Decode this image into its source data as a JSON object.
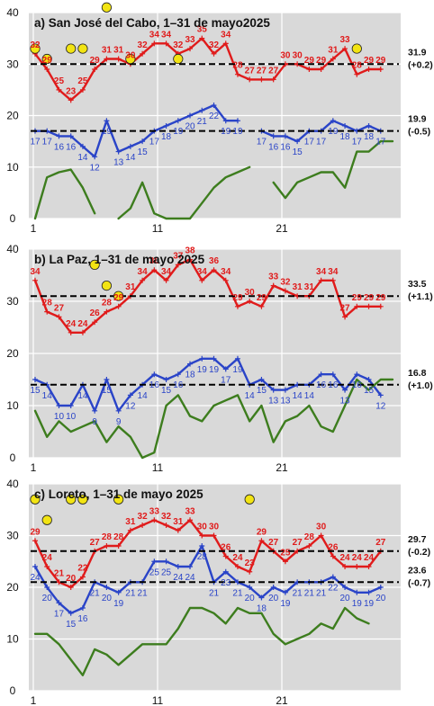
{
  "colors": {
    "tmax": "#e01b1b",
    "tmin": "#2a44c8",
    "precip": "#3d7d1e",
    "mean_line": "#000000",
    "marker": "#f2e413",
    "plot_bg": "#d9d9d9"
  },
  "chart_data": [
    {
      "type": "line",
      "title": "a) San José del Cabo, 1–31 de mayo2025",
      "x": [
        1,
        2,
        3,
        4,
        5,
        6,
        7,
        8,
        9,
        10,
        11,
        12,
        13,
        14,
        15,
        16,
        17,
        18,
        19,
        20,
        21,
        22,
        23,
        24,
        25,
        26,
        27,
        28,
        29,
        30,
        31
      ],
      "xticks": [
        "1",
        "11",
        "21"
      ],
      "ylim": [
        0,
        40
      ],
      "yticks": [
        0,
        10,
        20,
        30,
        40
      ],
      "series": [
        {
          "values": [
            32,
            29,
            25,
            23,
            25,
            29,
            31,
            31,
            30,
            32,
            34,
            34,
            32,
            33,
            35,
            32,
            34,
            28,
            27,
            27,
            27,
            30,
            30,
            29,
            29,
            31,
            33,
            28,
            29,
            29,
            null
          ]
        },
        {
          "values": [
            17,
            17,
            16,
            16,
            14,
            12,
            19,
            13,
            14,
            15,
            17,
            18,
            19,
            20,
            21,
            22,
            19,
            19,
            null,
            17,
            16,
            16,
            15,
            17,
            17,
            19,
            18,
            17,
            18,
            17,
            null
          ]
        },
        {
          "values": [
            0,
            8,
            9,
            9.5,
            6,
            1,
            null,
            0,
            2,
            7,
            1,
            0,
            0,
            0,
            3,
            6,
            8,
            9,
            10,
            null,
            7,
            4,
            7,
            8,
            9,
            9,
            6,
            13,
            13,
            15,
            15
          ]
        }
      ],
      "temp_labels": {
        "tmax": [
          "32",
          "29",
          "25",
          "23",
          "25",
          "29",
          "31",
          "31",
          "30",
          "32",
          "34",
          "34",
          "32",
          "33",
          "35",
          "32",
          "34",
          "28",
          "27",
          "27",
          "27",
          "30",
          "30",
          "29",
          "29",
          "31",
          "33",
          "28",
          "29",
          "29"
        ],
        "tmin": [
          "17",
          "17",
          "16",
          "16",
          "14",
          "12",
          "19",
          "13",
          "14",
          "15",
          "17",
          "18",
          "19",
          "20",
          "21",
          "22",
          "19",
          "19",
          "17",
          "16",
          "16",
          "15",
          "17",
          "17",
          "19",
          "18",
          "17",
          "18",
          "17"
        ]
      },
      "markers": [
        {
          "x": 1,
          "y": 33
        },
        {
          "x": 2,
          "y": 31
        },
        {
          "x": 4,
          "y": 33
        },
        {
          "x": 5,
          "y": 33
        },
        {
          "x": 7,
          "y": 41
        },
        {
          "x": 9,
          "y": 31
        },
        {
          "x": 13,
          "y": 31
        },
        {
          "x": 28,
          "y": 33
        }
      ],
      "means": [
        {
          "value": 31.9,
          "label": "31.9",
          "anomaly": "(+0.2)",
          "y": 30
        },
        {
          "value": 19.9,
          "label": "19.9",
          "anomaly": "(-0.5)",
          "y": 17
        }
      ]
    },
    {
      "type": "line",
      "title": "b) La Paz, 1–31 de mayo 2025",
      "x": [
        1,
        2,
        3,
        4,
        5,
        6,
        7,
        8,
        9,
        10,
        11,
        12,
        13,
        14,
        15,
        16,
        17,
        18,
        19,
        20,
        21,
        22,
        23,
        24,
        25,
        26,
        27,
        28,
        29,
        30,
        31
      ],
      "xticks": [
        "1",
        "11",
        "21"
      ],
      "ylim": [
        0,
        40
      ],
      "yticks": [
        0,
        10,
        20,
        30,
        40
      ],
      "series": [
        {
          "values": [
            34,
            28,
            27,
            24,
            24,
            26,
            28,
            29,
            31,
            34,
            36,
            34,
            37,
            38,
            34,
            36,
            34,
            29,
            30,
            29,
            33,
            32,
            31,
            31,
            34,
            34,
            27,
            29,
            29,
            29,
            null
          ]
        },
        {
          "values": [
            15,
            14,
            10,
            10,
            14,
            9,
            15,
            9,
            12,
            14,
            16,
            15,
            16,
            18,
            19,
            19,
            17,
            19,
            14,
            15,
            13,
            13,
            14,
            14,
            16,
            16,
            13,
            16,
            15,
            12,
            null
          ]
        },
        {
          "values": [
            9,
            4,
            7,
            5,
            6,
            7,
            3,
            6,
            4,
            0,
            1,
            10,
            12,
            8,
            7,
            10,
            11,
            12,
            7,
            10,
            3,
            7,
            8,
            10,
            6,
            5,
            10,
            15,
            13,
            15,
            15
          ]
        }
      ],
      "temp_labels": {
        "tmax": [
          "34",
          "28",
          "27",
          "24",
          "24",
          "26",
          "28",
          "29",
          "31",
          "34",
          "36",
          "34",
          "37",
          "38",
          "34",
          "36",
          "34",
          "29",
          "30",
          "29",
          "33",
          "32",
          "31",
          "31",
          "34",
          "34",
          "27",
          "29",
          "29",
          "29"
        ],
        "tmin": [
          "15",
          "14",
          "10",
          "10",
          "14",
          "9",
          "15",
          "9",
          "12",
          "14",
          "16",
          "15",
          "16",
          "18",
          "19",
          "19",
          "17",
          "19",
          "14",
          "15",
          "13",
          "13",
          "14",
          "14",
          "16",
          "16",
          "13",
          "16",
          "15",
          "12"
        ]
      },
      "markers": [
        {
          "x": 6,
          "y": 37
        },
        {
          "x": 7,
          "y": 33
        },
        {
          "x": 8,
          "y": 31
        }
      ],
      "means": [
        {
          "value": 33.5,
          "label": "33.5",
          "anomaly": "(+1.1)",
          "y": 31
        },
        {
          "value": 16.8,
          "label": "16.8",
          "anomaly": "(+1.0)",
          "y": 14
        }
      ]
    },
    {
      "type": "line",
      "title": "c) Loreto, 1–31 de mayo 2025",
      "x": [
        1,
        2,
        3,
        4,
        5,
        6,
        7,
        8,
        9,
        10,
        11,
        12,
        13,
        14,
        15,
        16,
        17,
        18,
        19,
        20,
        21,
        22,
        23,
        24,
        25,
        26,
        27,
        28,
        29,
        30,
        31
      ],
      "xticks": [
        "1",
        "11",
        "21"
      ],
      "ylim": [
        0,
        40
      ],
      "yticks": [
        0,
        10,
        20,
        30,
        40
      ],
      "series": [
        {
          "values": [
            29,
            24,
            21,
            20,
            22,
            27,
            28,
            28,
            31,
            32,
            33,
            32,
            31,
            33,
            30,
            30,
            26,
            24,
            23,
            29,
            27,
            25,
            27,
            28,
            30,
            26,
            24,
            24,
            24,
            27,
            null
          ]
        },
        {
          "values": [
            24,
            20,
            17,
            15,
            16,
            21,
            20,
            19,
            21,
            21,
            25,
            25,
            24,
            24,
            28,
            21,
            23,
            21,
            20,
            18,
            20,
            19,
            21,
            21,
            21,
            22,
            20,
            19,
            19,
            20,
            null
          ]
        },
        {
          "values": [
            11,
            11,
            9,
            6,
            3,
            8,
            7,
            5,
            7,
            9,
            9,
            9,
            12,
            16,
            16,
            15,
            13,
            16,
            15,
            15,
            11,
            9,
            10,
            11,
            13,
            12,
            16,
            14,
            13,
            null,
            null
          ]
        }
      ],
      "temp_labels": {
        "tmax": [
          "29",
          "24",
          "21",
          "20",
          "22",
          "27",
          "28",
          "28",
          "31",
          "32",
          "33",
          "32",
          "31",
          "33",
          "30",
          "30",
          "26",
          "24",
          "23",
          "29",
          "27",
          "25",
          "27",
          "28",
          "30",
          "26",
          "24",
          "24",
          "24",
          "27"
        ],
        "tmin": [
          "24",
          "20",
          "17",
          "15",
          "16",
          "21",
          "20",
          "19",
          "21",
          "21",
          "25",
          "25",
          "24",
          "24",
          "28",
          "21",
          "23",
          "21",
          "20",
          "18",
          "20",
          "19",
          "21",
          "21",
          "21",
          "22",
          "20",
          "19",
          "19",
          "20"
        ]
      },
      "markers": [
        {
          "x": 1,
          "y": 37
        },
        {
          "x": 2,
          "y": 33
        },
        {
          "x": 4,
          "y": 37
        },
        {
          "x": 5,
          "y": 37
        },
        {
          "x": 8,
          "y": 37
        },
        {
          "x": 19,
          "y": 37
        }
      ],
      "means": [
        {
          "value": 29.7,
          "label": "29.7",
          "anomaly": "(-0.2)",
          "y": 27
        },
        {
          "value": 23.6,
          "label": "23.6",
          "anomaly": "(-0.7)",
          "y": 21
        }
      ]
    }
  ]
}
